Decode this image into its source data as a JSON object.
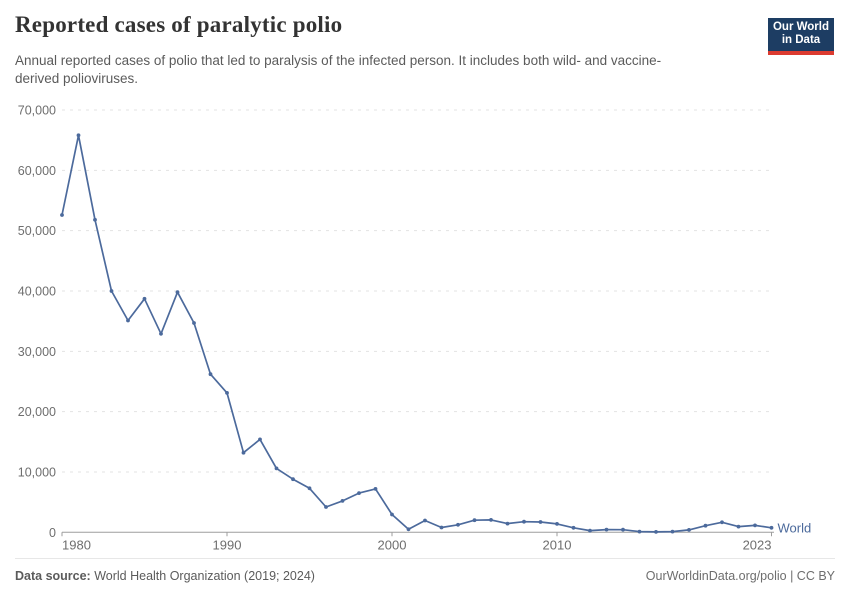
{
  "header": {
    "title": "Reported cases of paralytic polio",
    "subtitle": "Annual reported cases of polio that led to paralysis of the infected person. It includes both wild- and vaccine-derived polioviruses."
  },
  "logo": {
    "line1": "Our World",
    "line2": "in Data"
  },
  "chart_data": {
    "type": "line",
    "title": "Reported cases of paralytic polio",
    "xlabel": "",
    "ylabel": "",
    "xlim": [
      1980,
      2023
    ],
    "ylim": [
      0,
      70000
    ],
    "xticks": [
      1980,
      1990,
      2000,
      2010,
      2023
    ],
    "yticks": [
      0,
      10000,
      20000,
      30000,
      40000,
      50000,
      60000,
      70000
    ],
    "grid": "horizontal-dashed",
    "legend_position": "end-of-line-label",
    "series": [
      {
        "name": "World",
        "color": "#4C6A9C",
        "x": [
          1980,
          1981,
          1982,
          1983,
          1984,
          1985,
          1986,
          1987,
          1988,
          1989,
          1990,
          1991,
          1992,
          1993,
          1994,
          1995,
          1996,
          1997,
          1998,
          1999,
          2000,
          2001,
          2002,
          2003,
          2004,
          2005,
          2006,
          2007,
          2008,
          2009,
          2010,
          2011,
          2012,
          2013,
          2014,
          2015,
          2016,
          2017,
          2018,
          2019,
          2020,
          2021,
          2022,
          2023
        ],
        "values": [
          52600,
          65800,
          51800,
          40000,
          35100,
          38700,
          32900,
          39800,
          34700,
          26200,
          23100,
          13200,
          15400,
          10600,
          8800,
          7300,
          4200,
          5200,
          6500,
          7200,
          2950,
          500,
          1950,
          800,
          1250,
          2000,
          2050,
          1450,
          1750,
          1700,
          1400,
          750,
          280,
          450,
          430,
          120,
          60,
          120,
          400,
          1100,
          1650,
          950,
          1150,
          750
        ]
      }
    ]
  },
  "colors": {
    "line": "#4C6A9C",
    "grid": "#e3e3e3",
    "axis": "#9e9e9e",
    "tick_label": "#6e6e6e",
    "logo_bg": "#1d3d63",
    "logo_stripe": "#dc3b30"
  },
  "footer": {
    "source_label": "Data source:",
    "source_value": " World Health Organization (2019; 2024)",
    "url": "OurWorldinData.org/polio",
    "license": " | CC BY"
  }
}
